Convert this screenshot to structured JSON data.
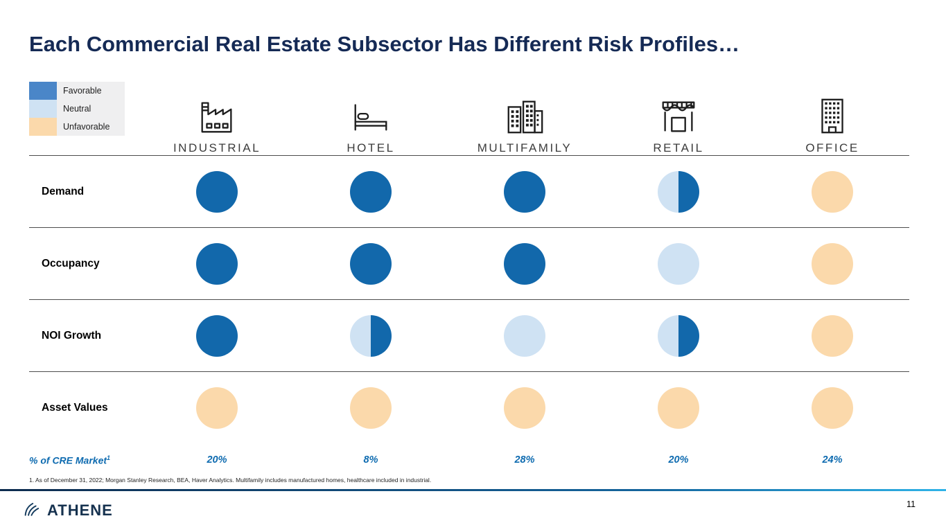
{
  "title": "Each Commercial Real Estate Subsector Has Different Risk Profiles…",
  "legend": {
    "items": [
      {
        "label": "Favorable",
        "color": "#4a86c8"
      },
      {
        "label": "Neutral",
        "color": "#cfe2f3"
      },
      {
        "label": "Unfavorable",
        "color": "#fbd9ab"
      }
    ]
  },
  "columns": [
    {
      "label": "INDUSTRIAL",
      "icon": "factory-icon",
      "market_share": "20%"
    },
    {
      "label": "HOTEL",
      "icon": "bed-icon",
      "market_share": "8%"
    },
    {
      "label": "MULTIFAMILY",
      "icon": "buildings-icon",
      "market_share": "28%"
    },
    {
      "label": "RETAIL",
      "icon": "storefront-icon",
      "market_share": "20%"
    },
    {
      "label": "OFFICE",
      "icon": "office-building-icon",
      "market_share": "24%"
    }
  ],
  "rows": [
    {
      "label": "Demand",
      "ratings": [
        "favorable",
        "favorable",
        "favorable",
        "neutral-favorable",
        "unfavorable"
      ]
    },
    {
      "label": "Occupancy",
      "ratings": [
        "favorable",
        "favorable",
        "favorable",
        "neutral",
        "unfavorable"
      ]
    },
    {
      "label": "NOI Growth",
      "ratings": [
        "favorable",
        "neutral-favorable",
        "neutral",
        "neutral-favorable",
        "unfavorable"
      ]
    },
    {
      "label": "Asset Values",
      "ratings": [
        "unfavorable",
        "unfavorable",
        "unfavorable",
        "unfavorable",
        "unfavorable"
      ]
    }
  ],
  "market_label": "% of CRE Market",
  "market_label_sup": "1",
  "footnote": "1. As of December 31, 2022; Morgan Stanley Research, BEA, Haver Analytics. Multifamily includes manufactured homes, healthcare included in industrial.",
  "footer": {
    "brand": "ATHENE",
    "page_number": "11"
  },
  "colors": {
    "favorable": "#1268ab",
    "neutral": "#cfe2f3",
    "unfavorable": "#fbd9ab",
    "title": "#152a55",
    "percent": "#0e6bb0",
    "divider_start": "#0d2b4e",
    "divider_end": "#2fb3e8"
  }
}
